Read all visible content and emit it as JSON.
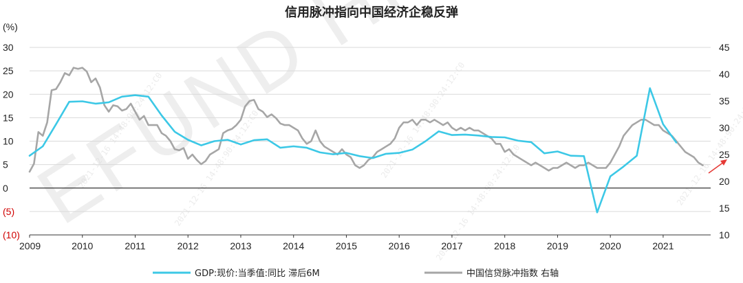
{
  "chart_data": {
    "type": "line",
    "title": "信用脉冲指向中国经济企稳反弹",
    "unit_label": "(%)",
    "watermark": "EFUND HK",
    "watermark_stamp": "2021-12-16 14:48:90:24:12:C0",
    "xlim": [
      2009,
      2021.9
    ],
    "x_tick_labels": [
      "2009",
      "2010",
      "2011",
      "2012",
      "2013",
      "2014",
      "2015",
      "2016",
      "2017",
      "2018",
      "2019",
      "2020",
      "2021"
    ],
    "ylim_left": [
      -10,
      30
    ],
    "left_tick_labels": [
      "30",
      "25",
      "20",
      "15",
      "10",
      "5",
      "0",
      "(5)",
      "(10)"
    ],
    "ylim_right": [
      10,
      45
    ],
    "right_tick_labels": [
      "45",
      "40",
      "35",
      "30",
      "25",
      "20",
      "15",
      "10"
    ],
    "grid": "horizontal",
    "legend_position": "bottom",
    "colors": {
      "gdp": "#3cc8e6",
      "credit": "#a6a6a6",
      "arrow": "#e53935",
      "neg_tick": "#d00000"
    },
    "series": [
      {
        "name": "GDP:现价:当季值:同比 滞后6M",
        "axis": "left",
        "x": [
          2009.0,
          2009.25,
          2009.5,
          2009.75,
          2010.0,
          2010.25,
          2010.5,
          2010.75,
          2011.0,
          2011.25,
          2011.5,
          2011.75,
          2012.0,
          2012.25,
          2012.5,
          2012.75,
          2013.0,
          2013.25,
          2013.5,
          2013.75,
          2014.0,
          2014.25,
          2014.5,
          2014.75,
          2015.0,
          2015.25,
          2015.5,
          2015.75,
          2016.0,
          2016.25,
          2016.5,
          2016.75,
          2017.0,
          2017.25,
          2017.5,
          2017.75,
          2018.0,
          2018.25,
          2018.5,
          2018.75,
          2019.0,
          2019.25,
          2019.5,
          2019.75,
          2020.0,
          2020.25,
          2020.5,
          2020.75,
          2021.0,
          2021.25
        ],
        "values": [
          6.9,
          8.9,
          13.6,
          18.4,
          18.5,
          18.0,
          18.3,
          19.5,
          19.8,
          19.5,
          15.5,
          12.0,
          10.3,
          9.1,
          10.0,
          10.3,
          9.3,
          10.2,
          10.4,
          8.6,
          8.9,
          8.6,
          7.6,
          7.2,
          7.5,
          6.8,
          6.4,
          7.3,
          7.5,
          8.2,
          10.0,
          12.1,
          11.3,
          11.4,
          11.2,
          10.9,
          10.8,
          10.1,
          9.8,
          7.4,
          7.8,
          6.9,
          6.8,
          -5.2,
          2.5,
          4.6,
          6.9,
          21.3,
          13.6,
          9.7
        ]
      },
      {
        "name": "中国信贷脉冲指数 右轴",
        "axis": "right",
        "x": [
          2009.0,
          2009.083,
          2009.167,
          2009.25,
          2009.333,
          2009.417,
          2009.5,
          2009.583,
          2009.667,
          2009.75,
          2009.833,
          2009.917,
          2010.0,
          2010.083,
          2010.167,
          2010.25,
          2010.333,
          2010.417,
          2010.5,
          2010.583,
          2010.667,
          2010.75,
          2010.833,
          2010.917,
          2011.0,
          2011.083,
          2011.167,
          2011.25,
          2011.333,
          2011.417,
          2011.5,
          2011.583,
          2011.667,
          2011.75,
          2011.833,
          2011.917,
          2012.0,
          2012.083,
          2012.167,
          2012.25,
          2012.333,
          2012.417,
          2012.5,
          2012.583,
          2012.667,
          2012.75,
          2012.833,
          2012.917,
          2013.0,
          2013.083,
          2013.167,
          2013.25,
          2013.333,
          2013.417,
          2013.5,
          2013.583,
          2013.667,
          2013.75,
          2013.833,
          2013.917,
          2014.0,
          2014.083,
          2014.167,
          2014.25,
          2014.333,
          2014.417,
          2014.5,
          2014.583,
          2014.667,
          2014.75,
          2014.833,
          2014.917,
          2015.0,
          2015.083,
          2015.167,
          2015.25,
          2015.333,
          2015.417,
          2015.5,
          2015.583,
          2015.667,
          2015.75,
          2015.833,
          2015.917,
          2016.0,
          2016.083,
          2016.167,
          2016.25,
          2016.333,
          2016.417,
          2016.5,
          2016.583,
          2016.667,
          2016.75,
          2016.833,
          2016.917,
          2017.0,
          2017.083,
          2017.167,
          2017.25,
          2017.333,
          2017.417,
          2017.5,
          2017.583,
          2017.667,
          2017.75,
          2017.833,
          2017.917,
          2018.0,
          2018.083,
          2018.167,
          2018.25,
          2018.333,
          2018.417,
          2018.5,
          2018.583,
          2018.667,
          2018.75,
          2018.833,
          2018.917,
          2019.0,
          2019.083,
          2019.167,
          2019.25,
          2019.333,
          2019.417,
          2019.5,
          2019.583,
          2019.667,
          2019.75,
          2019.833,
          2019.917,
          2020.0,
          2020.083,
          2020.167,
          2020.25,
          2020.333,
          2020.417,
          2020.5,
          2020.583,
          2020.667,
          2020.75,
          2020.833,
          2020.917,
          2021.0,
          2021.083,
          2021.167,
          2021.25,
          2021.333,
          2021.417,
          2021.5,
          2021.583,
          2021.667,
          2021.75
        ],
        "values": [
          21.8,
          23.3,
          29.2,
          28.5,
          31.0,
          37.0,
          37.2,
          38.5,
          40.2,
          39.8,
          41.2,
          41.0,
          41.2,
          40.5,
          38.5,
          39.2,
          37.5,
          34.2,
          33.0,
          34.2,
          34.0,
          33.2,
          33.5,
          34.5,
          33.0,
          31.5,
          32.2,
          30.5,
          30.5,
          30.5,
          29.0,
          28.5,
          27.5,
          26.0,
          25.8,
          26.2,
          24.2,
          25.0,
          24.0,
          23.2,
          23.8,
          25.0,
          25.5,
          26.0,
          29.0,
          29.5,
          29.8,
          30.5,
          31.5,
          34.0,
          35.0,
          35.2,
          33.5,
          33.0,
          32.0,
          32.5,
          31.8,
          30.8,
          30.5,
          30.5,
          30.0,
          29.5,
          28.0,
          27.0,
          27.5,
          29.5,
          27.5,
          26.5,
          26.0,
          25.5,
          25.0,
          26.0,
          25.0,
          24.5,
          23.0,
          22.5,
          23.0,
          24.0,
          24.5,
          25.5,
          26.0,
          26.5,
          27.0,
          28.0,
          30.0,
          31.0,
          31.0,
          31.5,
          30.5,
          31.5,
          31.5,
          31.0,
          31.5,
          31.0,
          30.5,
          31.0,
          30.0,
          29.5,
          30.0,
          29.5,
          30.0,
          29.5,
          29.5,
          29.0,
          28.5,
          28.0,
          27.0,
          27.0,
          25.5,
          26.0,
          25.0,
          24.5,
          24.0,
          23.5,
          23.0,
          23.5,
          23.0,
          22.5,
          22.0,
          22.5,
          22.5,
          23.0,
          23.5,
          23.0,
          22.5,
          23.0,
          23.0,
          23.5,
          23.0,
          22.5,
          22.5,
          22.5,
          23.5,
          25.0,
          26.5,
          28.5,
          29.5,
          30.5,
          31.0,
          31.5,
          31.5,
          31.0,
          30.5,
          30.5,
          29.5,
          29.0,
          28.5,
          27.5,
          26.5,
          25.5,
          25.0,
          24.5,
          23.5,
          23.0
        ]
      }
    ]
  }
}
